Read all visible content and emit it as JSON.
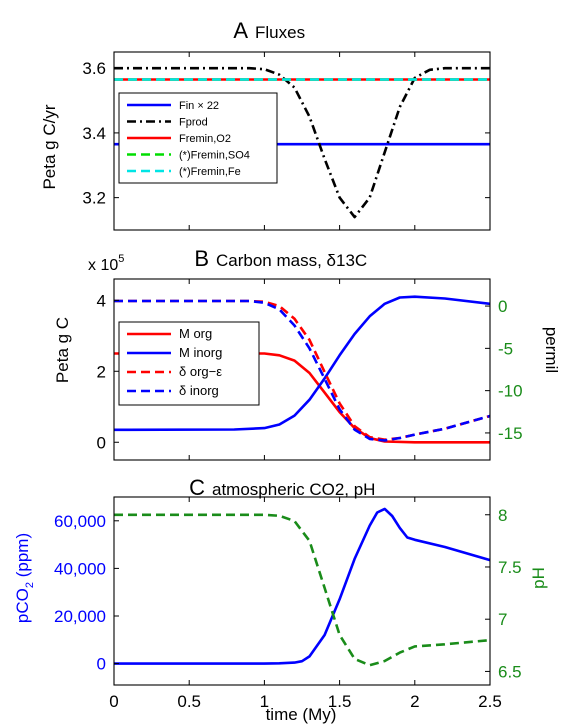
{
  "colors": {
    "blue": "#0000ff",
    "red": "#ff0000",
    "black": "#000000",
    "green": "#00dd00",
    "cyan": "#00e5e5",
    "dark_green": "#1a8c1a"
  },
  "chart_data": [
    {
      "panel": "A",
      "type": "line",
      "title_letter": "A",
      "title": "Fluxes",
      "ylabel": "Peta g C/yr",
      "xlim": [
        0,
        2.5
      ],
      "ylim": [
        3.1,
        3.65
      ],
      "yticks": [
        "3.2",
        "3.4",
        "3.6"
      ],
      "ytick_values": [
        3.2,
        3.4,
        3.6
      ],
      "legend_position": "left",
      "series": [
        {
          "name": "Fin × 22",
          "color": "#0000ff",
          "dash": "solid",
          "x": [
            0,
            2.5
          ],
          "y": [
            3.365,
            3.365
          ]
        },
        {
          "name": "Fprod",
          "color": "#000000",
          "dash": "dashdot",
          "x": [
            0,
            0.9,
            1.0,
            1.1,
            1.2,
            1.3,
            1.4,
            1.5,
            1.6,
            1.7,
            1.8,
            1.9,
            2.0,
            2.1,
            2.2,
            2.5
          ],
          "y": [
            3.6,
            3.6,
            3.597,
            3.58,
            3.54,
            3.45,
            3.32,
            3.2,
            3.14,
            3.2,
            3.34,
            3.48,
            3.57,
            3.595,
            3.6,
            3.6
          ]
        },
        {
          "name": "Fremin,O2",
          "color": "#ff0000",
          "dash": "solid",
          "x": [
            0,
            2.5
          ],
          "y": [
            3.565,
            3.565
          ]
        },
        {
          "name": "(*)Fremin,SO4",
          "color": "#00dd00",
          "dash": "dashed",
          "x": [
            0,
            2.5
          ],
          "y": [
            3.565,
            3.565
          ]
        },
        {
          "name": "(*)Fremin,Fe",
          "color": "#00e5e5",
          "dash": "dashed",
          "x": [
            0,
            2.5
          ],
          "y": [
            3.565,
            3.565
          ]
        }
      ]
    },
    {
      "panel": "B",
      "type": "line",
      "title_letter": "B",
      "title": "Carbon mass, δ13C",
      "ylabel": "Peta g C",
      "y2label": "permil",
      "y_multiplier_base": "x 10",
      "y_multiplier_exp": "5",
      "xlim": [
        0,
        2.5
      ],
      "ylim": [
        -0.5,
        4.6
      ],
      "y2lim": [
        -18.2,
        3.2
      ],
      "yticks": [
        "0",
        "2",
        "4"
      ],
      "ytick_values": [
        0,
        2,
        4
      ],
      "y2ticks": [
        "0",
        "-5",
        "-10",
        "-15"
      ],
      "y2tick_values": [
        0,
        -5,
        -10,
        -15
      ],
      "legend_position": "left",
      "series": [
        {
          "name": "M org",
          "color": "#ff0000",
          "dash": "solid",
          "axis": "left",
          "x": [
            0,
            1.0,
            1.1,
            1.2,
            1.3,
            1.4,
            1.5,
            1.6,
            1.7,
            1.8,
            2.0,
            2.5
          ],
          "y": [
            2.5,
            2.5,
            2.45,
            2.3,
            1.95,
            1.4,
            0.85,
            0.4,
            0.12,
            0.02,
            0.0,
            0.0
          ]
        },
        {
          "name": "M inorg",
          "color": "#0000ff",
          "dash": "solid",
          "axis": "left",
          "x": [
            0,
            0.8,
            1.0,
            1.1,
            1.2,
            1.3,
            1.4,
            1.5,
            1.6,
            1.7,
            1.8,
            1.9,
            2.0,
            2.2,
            2.5
          ],
          "y": [
            0.35,
            0.36,
            0.4,
            0.5,
            0.75,
            1.2,
            1.8,
            2.45,
            3.05,
            3.55,
            3.9,
            4.08,
            4.1,
            4.05,
            3.9
          ]
        },
        {
          "name": "δ org−ε",
          "color": "#ff0000",
          "dash": "dashed",
          "axis": "right",
          "x": [
            0,
            0.9,
            1.0,
            1.1,
            1.2,
            1.3,
            1.4,
            1.5,
            1.6,
            1.7,
            1.8,
            1.9,
            2.0,
            2.2,
            2.5
          ],
          "y": [
            0.6,
            0.6,
            0.5,
            0.0,
            -1.5,
            -4.0,
            -7.8,
            -11.5,
            -14.2,
            -15.5,
            -15.8,
            -15.6,
            -15.2,
            -14.5,
            -13.0
          ]
        },
        {
          "name": "δ inorg",
          "color": "#0000ff",
          "dash": "dashed",
          "axis": "right",
          "x": [
            0,
            0.9,
            1.0,
            1.1,
            1.2,
            1.3,
            1.4,
            1.5,
            1.6,
            1.7,
            1.8,
            1.9,
            2.0,
            2.2,
            2.5
          ],
          "y": [
            0.6,
            0.6,
            0.4,
            -0.4,
            -2.3,
            -5.0,
            -8.6,
            -12.2,
            -14.6,
            -15.7,
            -15.9,
            -15.6,
            -15.2,
            -14.5,
            -13.0
          ]
        }
      ]
    },
    {
      "panel": "C",
      "type": "line",
      "title_letter": "C",
      "title": "atmospheric CO2, pH",
      "ylabel_main": "pCO",
      "ylabel_sub": "2",
      "ylabel_tail": " (ppm)",
      "y2label": "pH",
      "xlabel": "time (My)",
      "xlim": [
        0,
        2.5
      ],
      "ylim": [
        -9000,
        70000
      ],
      "y2lim": [
        6.37,
        8.17
      ],
      "xticks": [
        "0",
        "0.5",
        "1",
        "1.5",
        "2",
        "2.5"
      ],
      "xtick_values": [
        0,
        0.5,
        1,
        1.5,
        2,
        2.5
      ],
      "yticks": [
        "0",
        "20,000",
        "40,000",
        "60,000"
      ],
      "ytick_values": [
        0,
        20000,
        40000,
        60000
      ],
      "y2ticks": [
        "6.5",
        "7",
        "7.5",
        "8"
      ],
      "y2tick_values": [
        6.5,
        7,
        7.5,
        8
      ],
      "series": [
        {
          "name": "pCO2",
          "color": "#0000ff",
          "dash": "solid",
          "axis": "left",
          "x": [
            0,
            1.0,
            1.1,
            1.2,
            1.25,
            1.3,
            1.4,
            1.5,
            1.6,
            1.7,
            1.75,
            1.8,
            1.85,
            1.9,
            1.95,
            2.0,
            2.2,
            2.5
          ],
          "y": [
            0,
            0,
            100,
            400,
            1000,
            3000,
            12000,
            27000,
            44000,
            58000,
            63500,
            65000,
            62000,
            57000,
            53000,
            52000,
            49000,
            43500
          ]
        },
        {
          "name": "pH",
          "color": "#1a8c1a",
          "dash": "dashed",
          "axis": "right",
          "x": [
            0,
            1.0,
            1.1,
            1.2,
            1.3,
            1.4,
            1.5,
            1.6,
            1.7,
            1.8,
            1.9,
            2.0,
            2.2,
            2.5
          ],
          "y": [
            8.0,
            8.0,
            7.99,
            7.94,
            7.75,
            7.3,
            6.85,
            6.62,
            6.56,
            6.6,
            6.68,
            6.74,
            6.76,
            6.8
          ]
        }
      ]
    }
  ]
}
